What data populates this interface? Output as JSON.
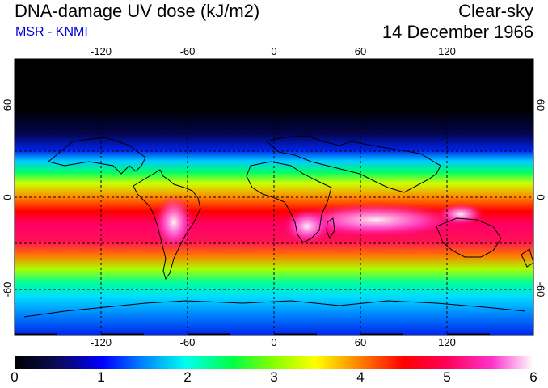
{
  "header": {
    "title": "DNA-damage UV dose (kJ/m2)",
    "source": "MSR - KNMI",
    "mode": "Clear-sky",
    "date": "14 December 1966"
  },
  "map": {
    "longitude_labels": [
      "-120",
      "-60",
      "0",
      "60",
      "120"
    ],
    "latitude_labels": [
      "60",
      "0",
      "-60"
    ],
    "colorbar_labels": [
      "0",
      "1",
      "2",
      "3",
      "4",
      "5",
      "6"
    ],
    "colorbar_range": [
      0,
      6
    ],
    "colors": {
      "ocean_frame": "#000000",
      "grid": "#000000",
      "colorbar_stops": [
        "#000000",
        "#1a1a80",
        "#0033ff",
        "#00ccff",
        "#00ff66",
        "#aaff00",
        "#ffff00",
        "#ff9900",
        "#ff0000",
        "#ff0066",
        "#ff33cc",
        "#ffffff"
      ]
    }
  }
}
